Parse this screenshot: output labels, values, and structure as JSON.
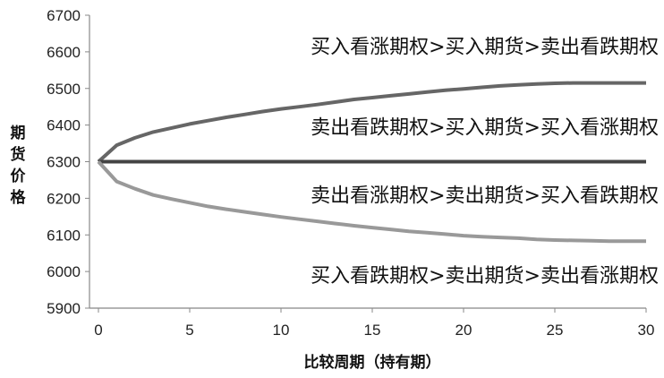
{
  "chart_data": {
    "type": "line",
    "xlabel": "比较周期（持有期）",
    "ylabel": "期货价格",
    "xlim": [
      0,
      30
    ],
    "ylim": [
      5900,
      6700
    ],
    "xticks": [
      0,
      5,
      10,
      15,
      20,
      25,
      30
    ],
    "yticks": [
      5900,
      6000,
      6100,
      6200,
      6300,
      6400,
      6500,
      6600,
      6700
    ],
    "grid": false,
    "legend": "none",
    "x": [
      0,
      1,
      2,
      3,
      4,
      5,
      6,
      7,
      8,
      9,
      10,
      11,
      12,
      13,
      14,
      15,
      16,
      17,
      18,
      19,
      20,
      21,
      22,
      23,
      24,
      25,
      26,
      27,
      28,
      29,
      30
    ],
    "series": [
      {
        "color": "#666666",
        "values": [
          6300,
          6345,
          6365,
          6381,
          6392,
          6403,
          6412,
          6421,
          6429,
          6437,
          6444,
          6450,
          6456,
          6463,
          6470,
          6475,
          6480,
          6485,
          6490,
          6495,
          6499,
          6503,
          6507,
          6510,
          6512,
          6514,
          6515,
          6515,
          6515,
          6515,
          6515
        ]
      },
      {
        "color": "#444444",
        "values": [
          6300,
          6300,
          6300,
          6300,
          6300,
          6300,
          6300,
          6300,
          6300,
          6300,
          6300,
          6300,
          6300,
          6300,
          6300,
          6300,
          6300,
          6300,
          6300,
          6300,
          6300,
          6300,
          6300,
          6300,
          6300,
          6300,
          6300,
          6300,
          6300,
          6300,
          6300
        ]
      },
      {
        "color": "#999999",
        "values": [
          6300,
          6246,
          6226,
          6209,
          6198,
          6188,
          6178,
          6170,
          6163,
          6156,
          6149,
          6143,
          6137,
          6131,
          6125,
          6120,
          6115,
          6110,
          6106,
          6102,
          6098,
          6095,
          6093,
          6091,
          6088,
          6086,
          6085,
          6084,
          6083,
          6083,
          6083
        ]
      }
    ],
    "annotations": [
      {
        "text": "买入看涨期权>买入期货>卖出看跌期权",
        "x": 30,
        "y": 6615
      },
      {
        "text": "卖出看跌期权>买入期货>买入看涨期权",
        "x": 30,
        "y": 6395
      },
      {
        "text": "卖出看涨期权>卖出期货>买入看跌期权",
        "x": 30,
        "y": 6210
      },
      {
        "text": "买入看跌期权>卖出期货>卖出看涨期权",
        "x": 30,
        "y": 5990
      }
    ]
  }
}
